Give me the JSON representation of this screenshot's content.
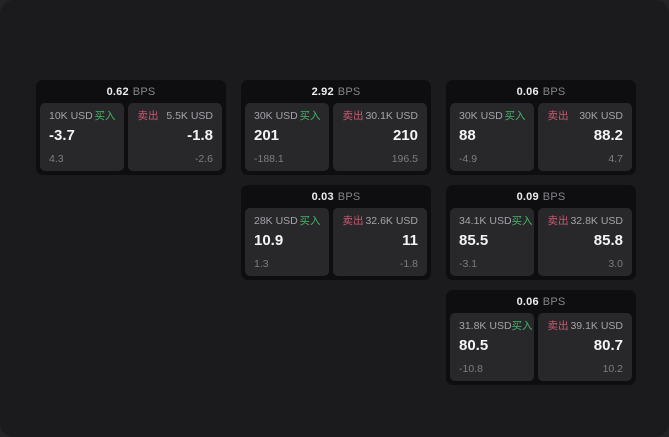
{
  "app": {
    "type": "quote-tiles-dashboard",
    "bps_unit_label": "BPS",
    "buy_label": "买入",
    "sell_label": "卖出",
    "colors": {
      "outer_background": "#232325",
      "frame_background": "#1b1b1d",
      "card_background": "#0e0e10",
      "panel_background": "#28282b",
      "buy_green": "#46b269",
      "sell_red": "#c9586f",
      "value_white": "#f4f4f6",
      "muted_gray": "#85868b"
    }
  },
  "cards": [
    {
      "grid": {
        "row": 1,
        "col": 1
      },
      "bps_value": "0.62",
      "bps_unit": "BPS",
      "buy": {
        "amount": "10K USD",
        "side_label": "买入",
        "value": "-3.7",
        "delta": "4.3"
      },
      "sell": {
        "amount": "5.5K USD",
        "side_label": "卖出",
        "value": "-1.8",
        "delta": "-2.6"
      }
    },
    {
      "grid": {
        "row": 1,
        "col": 2
      },
      "bps_value": "2.92",
      "bps_unit": "BPS",
      "buy": {
        "amount": "30K USD",
        "side_label": "买入",
        "value": "201",
        "delta": "-188.1"
      },
      "sell": {
        "amount": "30.1K USD",
        "side_label": "卖出",
        "value": "210",
        "delta": "196.5"
      }
    },
    {
      "grid": {
        "row": 1,
        "col": 3
      },
      "bps_value": "0.06",
      "bps_unit": "BPS",
      "buy": {
        "amount": "30K USD",
        "side_label": "买入",
        "value": "88",
        "delta": "-4.9"
      },
      "sell": {
        "amount": "30K USD",
        "side_label": "卖出",
        "value": "88.2",
        "delta": "4.7"
      }
    },
    {
      "grid": {
        "row": 2,
        "col": 2
      },
      "bps_value": "0.03",
      "bps_unit": "BPS",
      "buy": {
        "amount": "28K USD",
        "side_label": "买入",
        "value": "10.9",
        "delta": "1.3"
      },
      "sell": {
        "amount": "32.6K USD",
        "side_label": "卖出",
        "value": "11",
        "delta": "-1.8"
      }
    },
    {
      "grid": {
        "row": 2,
        "col": 3
      },
      "bps_value": "0.09",
      "bps_unit": "BPS",
      "buy": {
        "amount": "34.1K USD",
        "side_label": "买入",
        "value": "85.5",
        "delta": "-3.1"
      },
      "sell": {
        "amount": "32.8K USD",
        "side_label": "卖出",
        "value": "85.8",
        "delta": "3.0"
      }
    },
    {
      "grid": {
        "row": 3,
        "col": 3
      },
      "bps_value": "0.06",
      "bps_unit": "BPS",
      "buy": {
        "amount": "31.8K USD",
        "side_label": "买入",
        "value": "80.5",
        "delta": "-10.8"
      },
      "sell": {
        "amount": "39.1K USD",
        "side_label": "卖出",
        "value": "80.7",
        "delta": "10.2"
      }
    }
  ]
}
